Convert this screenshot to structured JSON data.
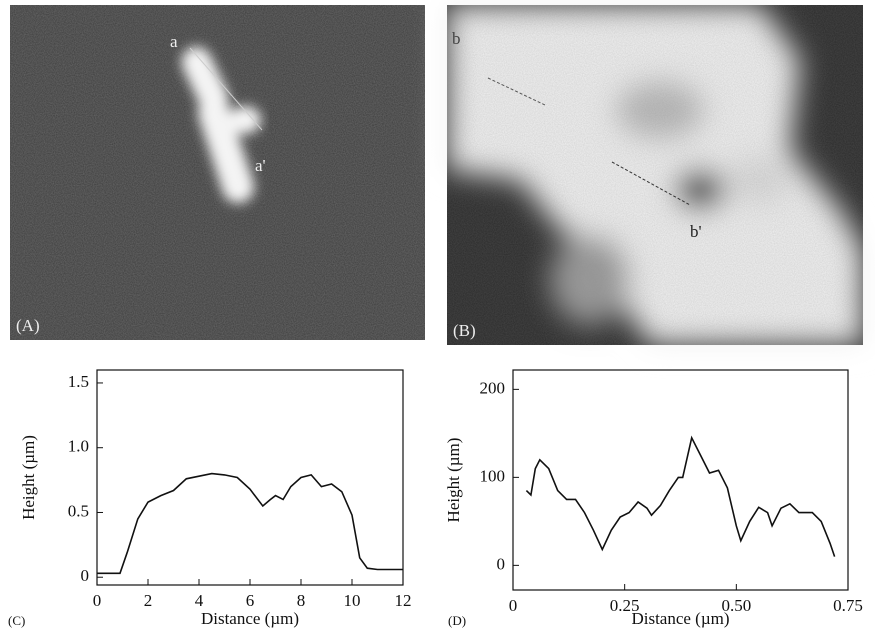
{
  "images": [
    {
      "panel": "(A)",
      "marks": [
        "a",
        "a'"
      ]
    },
    {
      "panel": "(B)",
      "marks": [
        "b",
        "b'"
      ]
    }
  ],
  "chart_data": [
    {
      "type": "line",
      "panel": "(C)",
      "x_label": "Distance (µm)",
      "y_label": "Height (µm)",
      "x": [
        0,
        0.9,
        1.2,
        1.6,
        2,
        2.5,
        3,
        3.5,
        4,
        4.5,
        5,
        5.5,
        6,
        6.5,
        6.8,
        7,
        7.3,
        7.6,
        8,
        8.4,
        8.8,
        9.2,
        9.6,
        10,
        10.3,
        10.6,
        11,
        12
      ],
      "series": [
        {
          "color": "#111111",
          "values": [
            0.03,
            0.03,
            0.2,
            0.45,
            0.58,
            0.63,
            0.67,
            0.76,
            0.78,
            0.8,
            0.79,
            0.77,
            0.68,
            0.55,
            0.6,
            0.63,
            0.6,
            0.7,
            0.77,
            0.79,
            0.7,
            0.72,
            0.66,
            0.48,
            0.15,
            0.07,
            0.06,
            0.06
          ]
        }
      ],
      "xlim": [
        0,
        12
      ],
      "xticks": [
        0,
        2,
        4,
        6,
        8,
        10,
        12
      ],
      "ylim": [
        -0.06,
        1.6
      ],
      "yticks": [
        0,
        0.5,
        {
          "value": 1,
          "label": "1.0"
        },
        1.5
      ]
    },
    {
      "type": "line",
      "panel": "(D)",
      "x_label": "Distance (µm)",
      "y_label": "Height (µm)",
      "x": [
        0.03,
        0.04,
        0.05,
        0.06,
        0.08,
        0.1,
        0.12,
        0.14,
        0.16,
        0.18,
        0.2,
        0.22,
        0.24,
        0.26,
        0.28,
        0.3,
        0.31,
        0.33,
        0.35,
        0.37,
        0.38,
        0.4,
        0.42,
        0.44,
        0.46,
        0.48,
        0.5,
        0.51,
        0.53,
        0.55,
        0.57,
        0.58,
        0.6,
        0.62,
        0.64,
        0.67,
        0.69,
        0.71,
        0.72
      ],
      "series": [
        {
          "color": "#111111",
          "values": [
            85,
            80,
            110,
            120,
            110,
            85,
            75,
            75,
            60,
            40,
            18,
            40,
            55,
            60,
            72,
            65,
            57,
            68,
            85,
            100,
            100,
            145,
            125,
            105,
            108,
            88,
            45,
            28,
            50,
            66,
            60,
            45,
            65,
            70,
            60,
            60,
            50,
            25,
            10
          ]
        }
      ],
      "xlim": [
        0,
        0.75
      ],
      "xticks": [
        0,
        0.25,
        {
          "value": 0.5,
          "label": "0.50"
        },
        0.75
      ],
      "ylim": [
        -28,
        222
      ],
      "yticks": [
        0,
        100,
        200
      ]
    }
  ]
}
